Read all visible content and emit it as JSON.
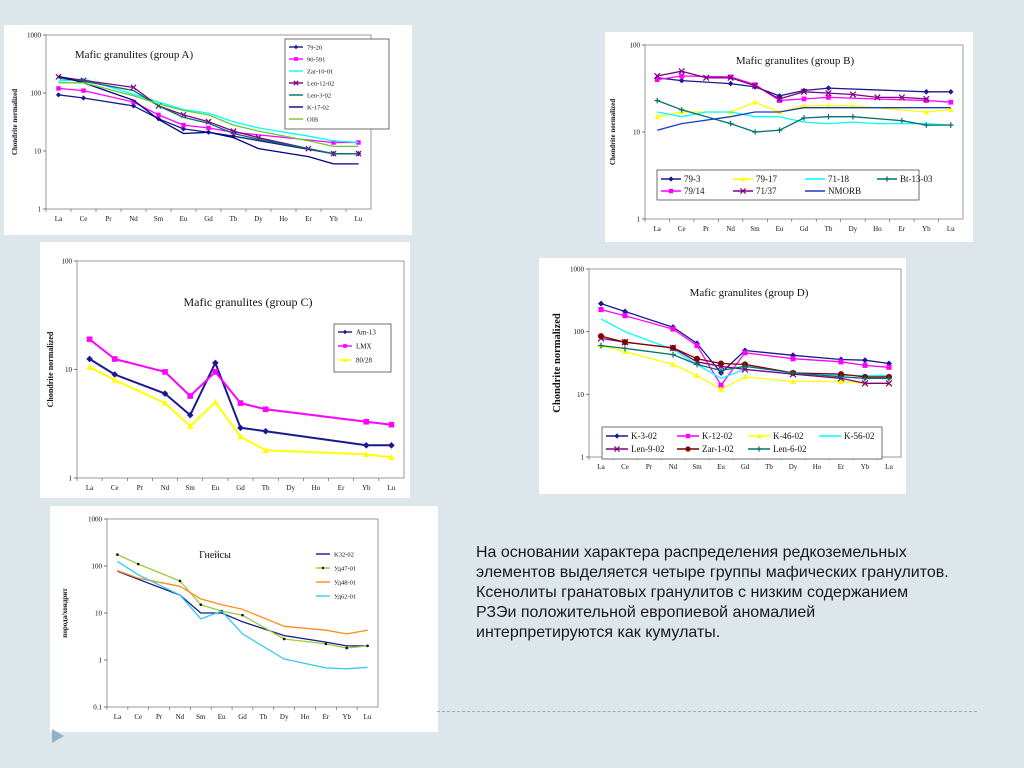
{
  "text": {
    "lines": [
      "На основании характера распределения редкоземельных",
      " элементов выделяется четыре группы мафических гранулитов.",
      " Ксенолиты гранатовых гранулитов с низким содержанием",
      " РЗЭи положительной европиевой аномалией",
      " интерпретируются как кумулаты."
    ]
  },
  "chart_data": [
    {
      "type": "line",
      "title": "Mafic granulites (group A)",
      "ylabel": "Chondrite normalized",
      "y_scale": "log",
      "ylim": [
        1,
        1000
      ],
      "y_ticks": [
        "1",
        "10",
        "100",
        "1000"
      ],
      "categories": [
        "La",
        "Ce",
        "Pr",
        "Nd",
        "Sm",
        "Eu",
        "Gd",
        "Tb",
        "Dy",
        "Ho",
        "Er",
        "Yb",
        "Lu"
      ],
      "legend_position": "top-right",
      "series": [
        {
          "name": "79-20",
          "color": "#1a1a8c",
          "marker": "diamond",
          "values": [
            93,
            82,
            null,
            60,
            36,
            24,
            21,
            18,
            null,
            null,
            null,
            9,
            9
          ]
        },
        {
          "name": "90-591",
          "color": "#ff00ff",
          "marker": "square",
          "values": [
            120,
            110,
            null,
            70,
            42,
            28,
            25,
            21,
            null,
            null,
            null,
            14,
            14
          ]
        },
        {
          "name": "Zar-10-01",
          "color": "#00ffff",
          "marker": "none",
          "values": [
            160,
            175,
            null,
            95,
            70,
            52,
            45,
            32,
            25,
            null,
            18,
            15,
            14
          ]
        },
        {
          "name": "Len-12-02",
          "color": "#800080",
          "marker": "x",
          "values": [
            190,
            165,
            null,
            125,
            60,
            42,
            32,
            22,
            17,
            null,
            11,
            9,
            9
          ]
        },
        {
          "name": "Len-3-02",
          "color": "#007070",
          "marker": "none",
          "values": [
            180,
            160,
            null,
            110,
            60,
            38,
            30,
            20,
            16,
            null,
            11,
            9,
            9
          ]
        },
        {
          "name": "K-17-02",
          "color": "#000080",
          "marker": "none",
          "values": [
            195,
            150,
            null,
            75,
            35,
            20,
            21,
            17,
            11,
            null,
            8,
            6,
            6
          ]
        },
        {
          "name": "OIB",
          "color": "#66cc33",
          "marker": "none",
          "values": [
            150,
            150,
            null,
            90,
            65,
            50,
            42,
            28,
            22,
            null,
            15,
            12,
            12
          ]
        }
      ]
    },
    {
      "type": "line",
      "title": "Mafic granulites (group B)",
      "ylabel": "Chondrite normalized",
      "y_scale": "log",
      "ylim": [
        1,
        100
      ],
      "y_ticks": [
        "1",
        "10",
        "100"
      ],
      "categories": [
        "La",
        "Ce",
        "Pr",
        "Nd",
        "Sm",
        "Eu",
        "Gd",
        "Tb",
        "Dy",
        "Ho",
        "Er",
        "Yb",
        "Lu"
      ],
      "legend_position": "bottom",
      "series": [
        {
          "name": "79-3",
          "color": "#1a1a8c",
          "marker": "diamond",
          "values": [
            42,
            39,
            null,
            36,
            33,
            26,
            30,
            32,
            null,
            null,
            null,
            29,
            29
          ]
        },
        {
          "name": "79-17",
          "color": "#ffff00",
          "marker": "triangle",
          "values": [
            15,
            17,
            null,
            17,
            22,
            17,
            20,
            20,
            20,
            null,
            null,
            17,
            18
          ]
        },
        {
          "name": "71-18",
          "color": "#00ffff",
          "marker": "none",
          "values": [
            17,
            15,
            17,
            17,
            15,
            15,
            13,
            12.5,
            13,
            12.5,
            null,
            12.5,
            12
          ]
        },
        {
          "name": "Bt-13-03",
          "color": "#007070",
          "marker": "plus",
          "values": [
            23,
            18,
            null,
            12.5,
            10,
            10.5,
            14.5,
            15,
            15,
            null,
            13.5,
            12,
            12
          ]
        },
        {
          "name": "79/14",
          "color": "#ff00ff",
          "marker": "square",
          "values": [
            40,
            44,
            null,
            43,
            35,
            23,
            24,
            25,
            null,
            null,
            null,
            23,
            22
          ]
        },
        {
          "name": "71/37",
          "color": "#800080",
          "marker": "x",
          "values": [
            44,
            50,
            42,
            42,
            34,
            24,
            29,
            28,
            27,
            25,
            25,
            24,
            null
          ]
        },
        {
          "name": "NMORB",
          "color": "#1a3cbf",
          "marker": "none",
          "values": [
            10.5,
            12.5,
            null,
            15,
            17,
            17,
            19,
            19,
            19,
            null,
            19,
            19,
            19
          ]
        }
      ]
    },
    {
      "type": "line",
      "title": "Mafic granulites (group C)",
      "ylabel": "Chondrite normalized",
      "y_scale": "log",
      "ylim": [
        1,
        100
      ],
      "y_ticks": [
        "1",
        "10",
        "100"
      ],
      "categories": [
        "La",
        "Ce",
        "Pr",
        "Nd",
        "Sm",
        "Eu",
        "Gd",
        "Tb",
        "Dy",
        "Ho",
        "Er",
        "Yb",
        "Lu"
      ],
      "legend_position": "right",
      "series": [
        {
          "name": "Am-13",
          "color": "#1a1a8c",
          "marker": "diamond",
          "values": [
            12.5,
            9,
            null,
            6,
            3.8,
            11.5,
            2.9,
            2.7,
            null,
            null,
            null,
            2,
            2
          ]
        },
        {
          "name": "LMX",
          "color": "#ff00ff",
          "marker": "square",
          "values": [
            19,
            12.5,
            null,
            9.5,
            5.7,
            9.5,
            4.9,
            4.3,
            null,
            null,
            null,
            3.3,
            3.1
          ]
        },
        {
          "name": "80/28",
          "color": "#ffff00",
          "marker": "triangle",
          "values": [
            10.5,
            8,
            null,
            4.9,
            3,
            5,
            2.4,
            1.8,
            null,
            null,
            null,
            1.65,
            1.55
          ]
        }
      ]
    },
    {
      "type": "line",
      "title": "Mafic granulites (group D)",
      "ylabel": "Chondrite normalized",
      "y_scale": "log",
      "ylim": [
        1,
        1000
      ],
      "y_ticks": [
        "1",
        "10",
        "100",
        "1000"
      ],
      "categories": [
        "La",
        "Ce",
        "Pr",
        "Nd",
        "Sm",
        "Eu",
        "Gd",
        "Tb",
        "Dy",
        "Ho",
        "Er",
        "Yb",
        "Lu"
      ],
      "legend_position": "bottom",
      "series": [
        {
          "name": "K-3-02",
          "color": "#1a1a8c",
          "marker": "diamond",
          "values": [
            280,
            210,
            null,
            118,
            65,
            22,
            50,
            null,
            42,
            null,
            36,
            35,
            31
          ]
        },
        {
          "name": "K-12-02",
          "color": "#ff00ff",
          "marker": "square",
          "values": [
            225,
            180,
            null,
            110,
            60,
            14,
            46,
            null,
            37,
            null,
            33,
            29,
            27
          ]
        },
        {
          "name": "K-46-02",
          "color": "#ffff00",
          "marker": "triangle",
          "values": [
            60,
            48,
            null,
            30,
            20,
            12,
            19,
            null,
            16,
            null,
            16,
            15,
            15
          ]
        },
        {
          "name": "K-56-02",
          "color": "#00ffff",
          "marker": "none",
          "values": [
            160,
            100,
            null,
            52,
            30,
            18,
            25,
            null,
            21,
            null,
            20,
            20,
            20
          ]
        },
        {
          "name": "Len-9-02",
          "color": "#800080",
          "marker": "x",
          "values": [
            78,
            68,
            null,
            55,
            33,
            28,
            25,
            null,
            21,
            null,
            18,
            15,
            15
          ]
        },
        {
          "name": "Zar-1-02",
          "color": "#800000",
          "marker": "circle",
          "values": [
            85,
            68,
            null,
            55,
            37,
            31,
            30,
            null,
            22,
            null,
            21,
            19,
            19
          ]
        },
        {
          "name": "Len-6-02",
          "color": "#007070",
          "marker": "plus",
          "values": [
            60,
            54,
            null,
            43,
            30,
            24,
            28,
            null,
            22,
            null,
            19,
            18,
            18
          ]
        }
      ]
    },
    {
      "type": "line",
      "title": "Гнейсы",
      "ylabel": "порода/хондрит",
      "y_scale": "log",
      "ylim": [
        0.1,
        1000
      ],
      "y_ticks": [
        "0.1",
        "1",
        "10",
        "100",
        "1000"
      ],
      "categories": [
        "La",
        "Ce",
        "Pr",
        "Nd",
        "Sm",
        "Eu",
        "Gd",
        "Tb",
        "Dy",
        "Ho",
        "Er",
        "Yb",
        "Lu"
      ],
      "legend_position": "top-right",
      "series": [
        {
          "name": "K32-02",
          "color": "#1a1a8c",
          "marker": "none",
          "values": [
            78,
            52,
            null,
            24,
            10,
            10,
            6.5,
            null,
            3.3,
            null,
            2.4,
            2,
            2
          ]
        },
        {
          "name": "Уд47-01",
          "color": "#9acd32",
          "marker": "dot",
          "values": [
            175,
            110,
            null,
            48,
            15,
            11,
            9,
            null,
            2.8,
            null,
            2.2,
            1.8,
            2
          ]
        },
        {
          "name": "Уд48-01",
          "color": "#ff8c1a",
          "marker": "none",
          "values": [
            80,
            55,
            null,
            37,
            20,
            15,
            12,
            null,
            5.2,
            null,
            4.3,
            3.6,
            4.3
          ]
        },
        {
          "name": "Уд62-01",
          "color": "#33ccee",
          "marker": "none",
          "values": [
            125,
            65,
            null,
            24,
            7.5,
            11,
            3.6,
            null,
            1.05,
            null,
            0.68,
            0.65,
            0.7
          ]
        }
      ]
    }
  ]
}
